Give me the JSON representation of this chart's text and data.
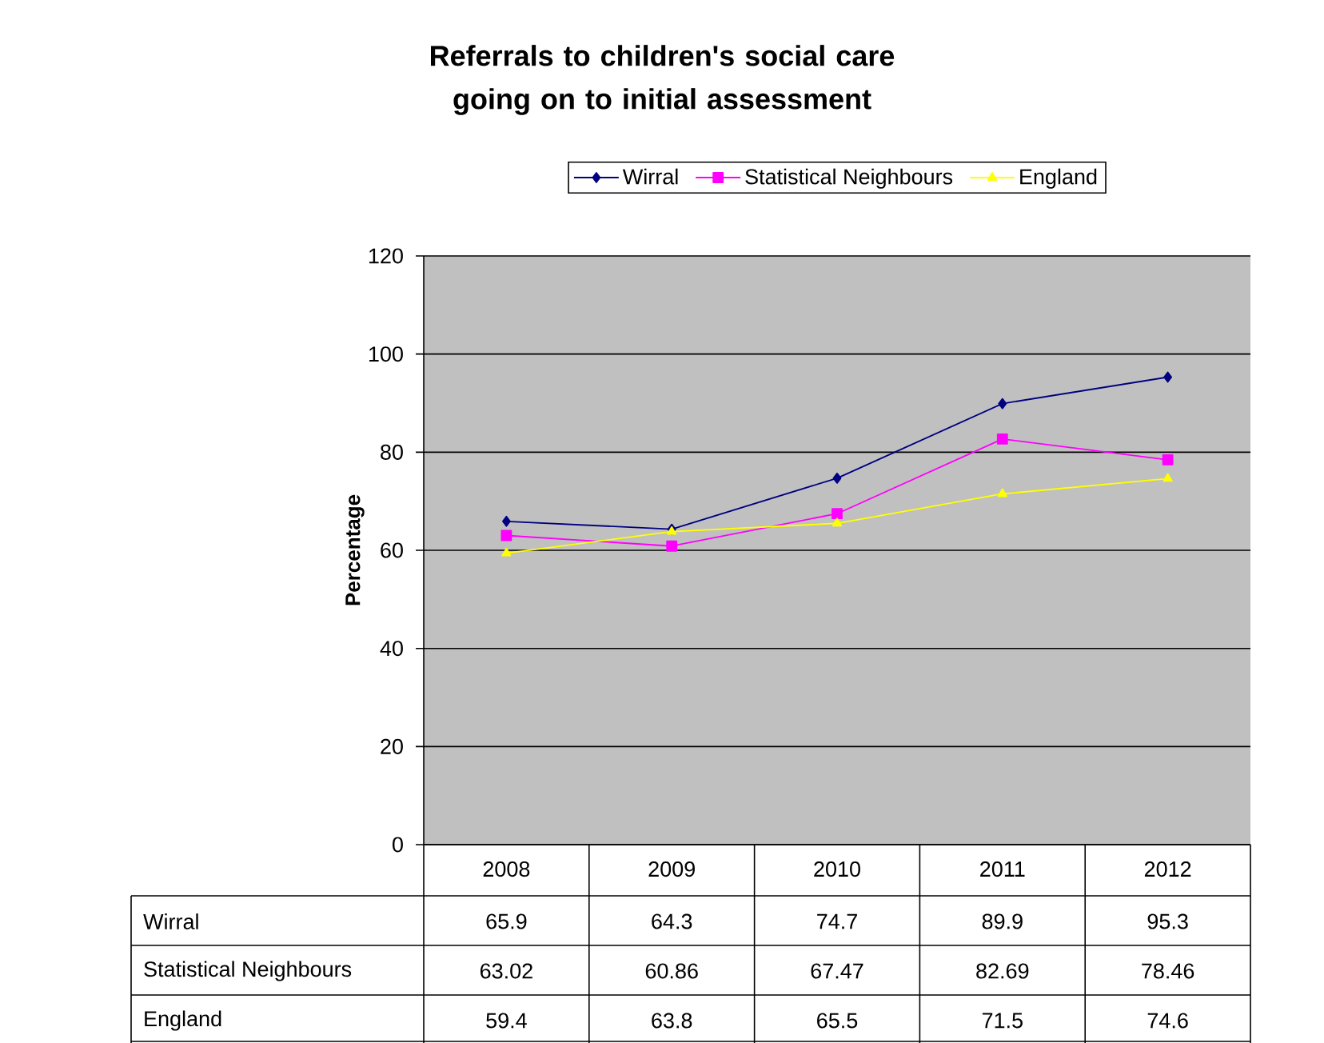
{
  "chart_data": {
    "type": "line",
    "title": "Referrals to children's social care going on to initial assessment",
    "ylabel": "Percentage",
    "categories": [
      "2008",
      "2009",
      "2010",
      "2011",
      "2012"
    ],
    "series": [
      {
        "name": "Wirral",
        "color": "#000080",
        "marker": "diamond",
        "values": [
          65.9,
          64.3,
          74.7,
          89.9,
          95.3
        ]
      },
      {
        "name": "Statistical Neighbours",
        "color": "#ff00ff",
        "marker": "square",
        "values": [
          63.02,
          60.86,
          67.47,
          82.69,
          78.46
        ]
      },
      {
        "name": "England",
        "color": "#ffff00",
        "marker": "triangle",
        "values": [
          59.4,
          63.8,
          65.5,
          71.5,
          74.6
        ]
      }
    ],
    "ylim": [
      0,
      120
    ],
    "yticks": [
      0,
      20,
      40,
      60,
      80,
      100,
      120
    ],
    "grid": "y",
    "legend": "top",
    "data_labels": true
  }
}
